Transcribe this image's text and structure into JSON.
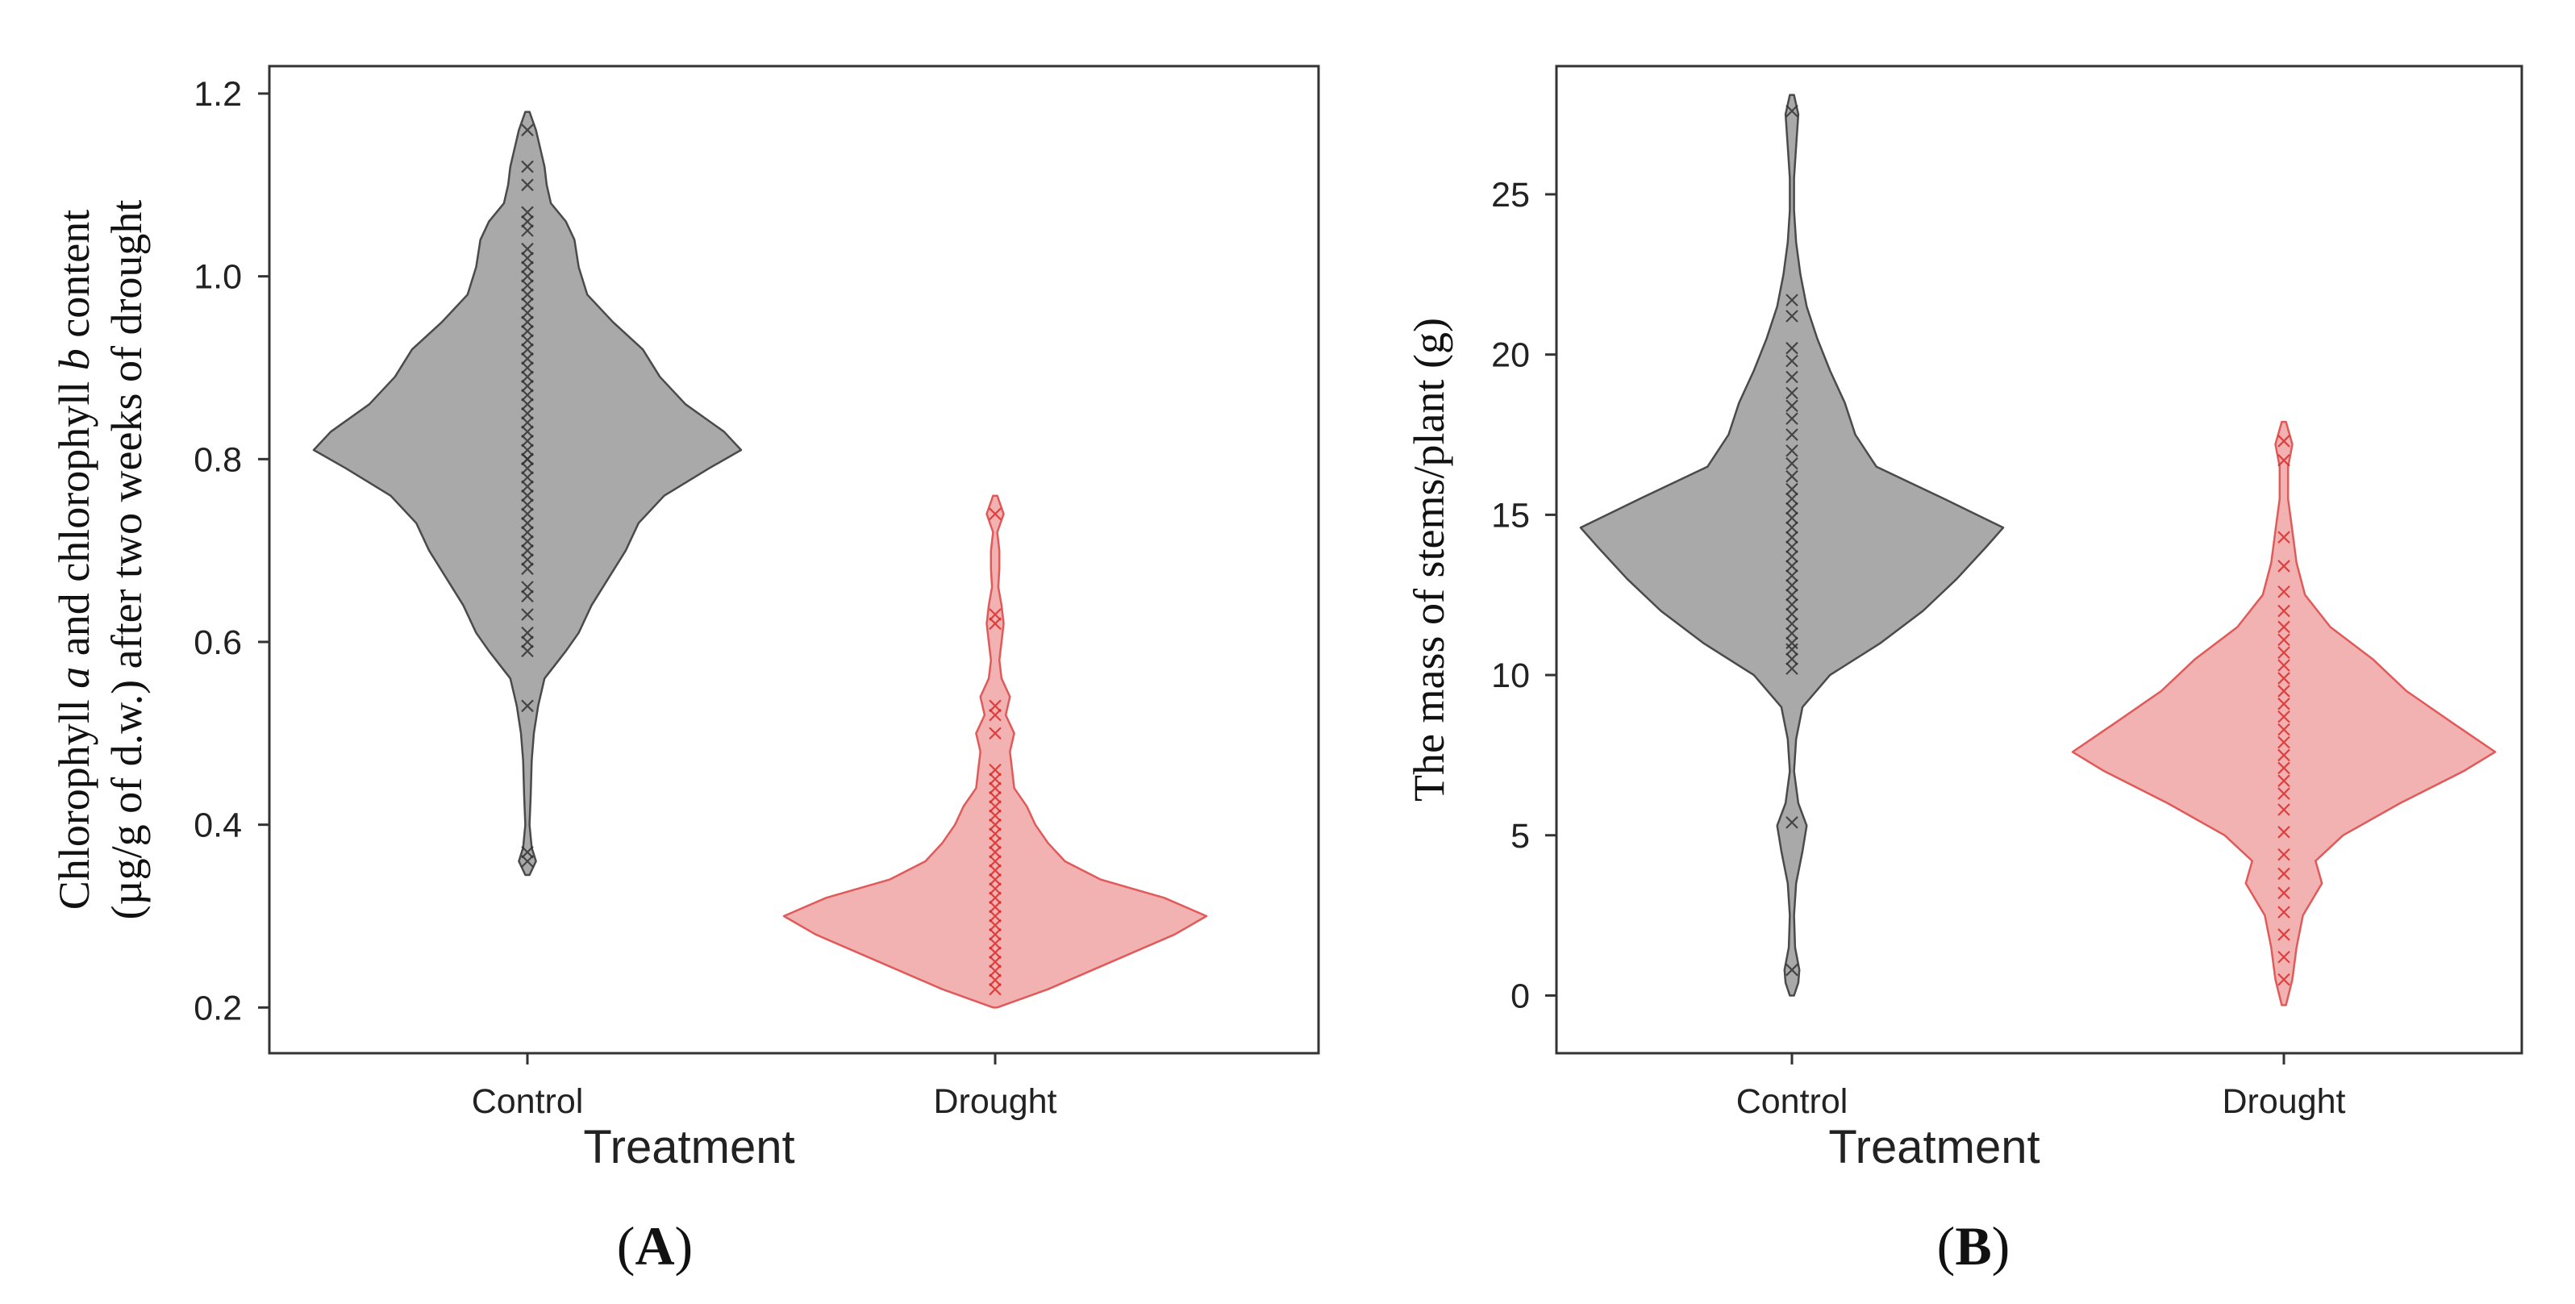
{
  "chart_data": [
    {
      "type": "violin",
      "panel_label": "(A)",
      "panel_letter": "A",
      "title": "",
      "xlabel": "Treatment",
      "ylabel_parts": [
        {
          "line": 1,
          "text": "Chlorophyll ",
          "italic": false
        },
        {
          "line": 1,
          "text": "a",
          "italic": true
        },
        {
          "line": 1,
          "text": " and chlorophyll ",
          "italic": false
        },
        {
          "line": 1,
          "text": "b",
          "italic": true
        },
        {
          "line": 1,
          "text": " content",
          "italic": false
        },
        {
          "line": 2,
          "text": "(µg/g of d.w.) after two weeks of drought",
          "italic": false
        }
      ],
      "categories": [
        "Control",
        "Drought"
      ],
      "ylim": [
        0.15,
        1.23
      ],
      "yticks": [
        0.2,
        0.4,
        0.6,
        0.8,
        1.0,
        1.2
      ],
      "ytick_labels": [
        "0.2",
        "0.4",
        "0.6",
        "0.8",
        "1.0",
        "1.2"
      ],
      "series": [
        {
          "name": "Control",
          "fill": "#a9a9a9",
          "stroke": "#4a4a4a",
          "point_color": "#333333",
          "density": [
            [
              0.345,
              0.01
            ],
            [
              0.36,
              0.04
            ],
            [
              0.375,
              0.02
            ],
            [
              0.4,
              0.01
            ],
            [
              0.43,
              0.015
            ],
            [
              0.47,
              0.02
            ],
            [
              0.5,
              0.03
            ],
            [
              0.53,
              0.05
            ],
            [
              0.56,
              0.08
            ],
            [
              0.59,
              0.18
            ],
            [
              0.61,
              0.24
            ],
            [
              0.64,
              0.3
            ],
            [
              0.67,
              0.38
            ],
            [
              0.7,
              0.46
            ],
            [
              0.73,
              0.52
            ],
            [
              0.76,
              0.64
            ],
            [
              0.79,
              0.85
            ],
            [
              0.81,
              1.0
            ],
            [
              0.83,
              0.92
            ],
            [
              0.86,
              0.74
            ],
            [
              0.89,
              0.62
            ],
            [
              0.92,
              0.54
            ],
            [
              0.95,
              0.4
            ],
            [
              0.98,
              0.28
            ],
            [
              1.01,
              0.24
            ],
            [
              1.04,
              0.22
            ],
            [
              1.06,
              0.18
            ],
            [
              1.08,
              0.11
            ],
            [
              1.1,
              0.09
            ],
            [
              1.12,
              0.08
            ],
            [
              1.14,
              0.06
            ],
            [
              1.16,
              0.04
            ],
            [
              1.18,
              0.01
            ]
          ],
          "points": [
            0.36,
            0.37,
            0.53,
            0.59,
            0.6,
            0.61,
            0.63,
            0.65,
            0.66,
            0.68,
            0.69,
            0.7,
            0.71,
            0.72,
            0.73,
            0.74,
            0.75,
            0.76,
            0.77,
            0.78,
            0.79,
            0.8,
            0.8,
            0.81,
            0.82,
            0.83,
            0.84,
            0.85,
            0.86,
            0.87,
            0.88,
            0.89,
            0.9,
            0.91,
            0.92,
            0.93,
            0.94,
            0.95,
            0.96,
            0.97,
            0.98,
            0.99,
            1.0,
            1.01,
            1.02,
            1.03,
            1.05,
            1.06,
            1.07,
            1.1,
            1.12,
            1.16
          ]
        },
        {
          "name": "Drought",
          "fill": "#f3b2b2",
          "stroke": "#e05a5a",
          "point_color": "#d92b2b",
          "density": [
            [
              0.2,
              0.01
            ],
            [
              0.22,
              0.25
            ],
            [
              0.25,
              0.55
            ],
            [
              0.28,
              0.85
            ],
            [
              0.3,
              1.0
            ],
            [
              0.32,
              0.8
            ],
            [
              0.34,
              0.5
            ],
            [
              0.36,
              0.33
            ],
            [
              0.38,
              0.25
            ],
            [
              0.4,
              0.19
            ],
            [
              0.42,
              0.15
            ],
            [
              0.44,
              0.09
            ],
            [
              0.46,
              0.08
            ],
            [
              0.48,
              0.07
            ],
            [
              0.5,
              0.09
            ],
            [
              0.52,
              0.05
            ],
            [
              0.54,
              0.07
            ],
            [
              0.56,
              0.03
            ],
            [
              0.58,
              0.02
            ],
            [
              0.6,
              0.03
            ],
            [
              0.62,
              0.04
            ],
            [
              0.64,
              0.03
            ],
            [
              0.66,
              0.015
            ],
            [
              0.68,
              0.02
            ],
            [
              0.7,
              0.02
            ],
            [
              0.72,
              0.01
            ],
            [
              0.74,
              0.04
            ],
            [
              0.76,
              0.01
            ]
          ],
          "points": [
            0.22,
            0.23,
            0.24,
            0.25,
            0.26,
            0.27,
            0.28,
            0.29,
            0.3,
            0.31,
            0.32,
            0.33,
            0.34,
            0.35,
            0.36,
            0.37,
            0.38,
            0.39,
            0.4,
            0.41,
            0.42,
            0.43,
            0.44,
            0.45,
            0.46,
            0.5,
            0.52,
            0.53,
            0.62,
            0.63,
            0.74
          ]
        }
      ]
    },
    {
      "type": "violin",
      "panel_label": "(B)",
      "panel_letter": "B",
      "title": "",
      "xlabel": "Treatment",
      "ylabel_parts": [
        {
          "line": 1,
          "text": "The mass of stems/plant (g)",
          "italic": false
        }
      ],
      "categories": [
        "Control",
        "Drought"
      ],
      "ylim": [
        -1.8,
        29.0
      ],
      "yticks": [
        0,
        5,
        10,
        15,
        20,
        25
      ],
      "ytick_labels": [
        "0",
        "5",
        "10",
        "15",
        "20",
        "25"
      ],
      "series": [
        {
          "name": "Control",
          "fill": "#a9a9a9",
          "stroke": "#4a4a4a",
          "point_color": "#333333",
          "density": [
            [
              0.0,
              0.01
            ],
            [
              0.4,
              0.03
            ],
            [
              0.8,
              0.035
            ],
            [
              1.5,
              0.015
            ],
            [
              2.5,
              0.01
            ],
            [
              3.5,
              0.02
            ],
            [
              4.5,
              0.05
            ],
            [
              5.3,
              0.07
            ],
            [
              6.0,
              0.03
            ],
            [
              7.0,
              0.01
            ],
            [
              8.0,
              0.02
            ],
            [
              9.0,
              0.05
            ],
            [
              10.0,
              0.18
            ],
            [
              11.0,
              0.42
            ],
            [
              12.0,
              0.62
            ],
            [
              13.0,
              0.78
            ],
            [
              14.0,
              0.92
            ],
            [
              14.6,
              1.0
            ],
            [
              15.5,
              0.72
            ],
            [
              16.5,
              0.4
            ],
            [
              17.5,
              0.3
            ],
            [
              18.5,
              0.25
            ],
            [
              19.5,
              0.18
            ],
            [
              20.5,
              0.12
            ],
            [
              21.5,
              0.07
            ],
            [
              22.5,
              0.04
            ],
            [
              23.5,
              0.02
            ],
            [
              24.5,
              0.01
            ],
            [
              25.5,
              0.01
            ],
            [
              26.5,
              0.02
            ],
            [
              27.5,
              0.03
            ],
            [
              28.1,
              0.01
            ]
          ],
          "points": [
            0.8,
            5.4,
            10.2,
            10.5,
            10.8,
            11.0,
            11.3,
            11.6,
            11.9,
            12.2,
            12.5,
            12.8,
            13.1,
            13.4,
            13.7,
            14.0,
            14.3,
            14.6,
            14.9,
            15.2,
            15.5,
            15.8,
            16.2,
            16.6,
            17.0,
            17.5,
            18.0,
            18.4,
            18.8,
            19.3,
            19.8,
            20.2,
            21.2,
            21.7,
            27.6
          ]
        },
        {
          "name": "Drought",
          "fill": "#f3b2b2",
          "stroke": "#e05a5a",
          "point_color": "#d92b2b",
          "density": [
            [
              -0.3,
              0.01
            ],
            [
              0.5,
              0.04
            ],
            [
              1.5,
              0.06
            ],
            [
              2.5,
              0.09
            ],
            [
              3.5,
              0.18
            ],
            [
              4.2,
              0.15
            ],
            [
              5.0,
              0.28
            ],
            [
              6.0,
              0.55
            ],
            [
              7.0,
              0.85
            ],
            [
              7.6,
              1.0
            ],
            [
              8.5,
              0.8
            ],
            [
              9.5,
              0.58
            ],
            [
              10.5,
              0.42
            ],
            [
              11.5,
              0.22
            ],
            [
              12.5,
              0.1
            ],
            [
              13.5,
              0.06
            ],
            [
              14.5,
              0.04
            ],
            [
              15.5,
              0.02
            ],
            [
              16.5,
              0.02
            ],
            [
              17.2,
              0.04
            ],
            [
              17.9,
              0.01
            ]
          ],
          "points": [
            0.5,
            1.2,
            1.9,
            2.6,
            3.2,
            3.8,
            4.4,
            5.1,
            5.8,
            6.3,
            6.7,
            7.1,
            7.5,
            7.9,
            8.3,
            8.7,
            9.1,
            9.5,
            9.9,
            10.3,
            10.7,
            11.1,
            11.5,
            12.0,
            12.6,
            13.4,
            14.3,
            16.7,
            17.3
          ]
        }
      ]
    }
  ]
}
